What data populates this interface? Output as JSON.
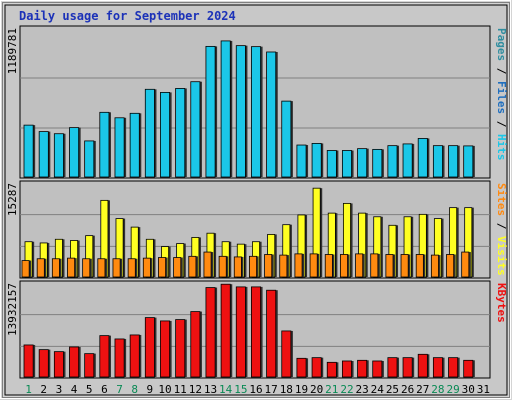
{
  "chart_data": {
    "type": "bar",
    "title": "Daily usage for September 2024",
    "categories": [
      "1",
      "2",
      "3",
      "4",
      "5",
      "6",
      "7",
      "8",
      "9",
      "10",
      "11",
      "12",
      "13",
      "14",
      "15",
      "16",
      "17",
      "18",
      "19",
      "20",
      "21",
      "22",
      "23",
      "24",
      "25",
      "26",
      "27",
      "28",
      "29",
      "30",
      "31"
    ],
    "weekend_days": [
      "1",
      "7",
      "8",
      "14",
      "15",
      "21",
      "22",
      "28",
      "29"
    ],
    "colors": {
      "pages": "#2f8ea0",
      "files": "#1f6fbf",
      "hits": "#1bc7e8",
      "sites": "#ff8a10",
      "visits": "#ffff22",
      "kbytes": "#ee1111",
      "title": "#1c32b8",
      "weekend_label": "#0a8a55",
      "weekday_label": "#000000",
      "panel_bg": "#c0c0c0"
    },
    "panels": [
      {
        "key": "hits",
        "ymax_label": "1189781",
        "ylim": [
          0,
          1189781
        ],
        "right_label_parts": [
          {
            "text": "Pages",
            "color": "#2f8ea0"
          },
          {
            "text": " / ",
            "color": "#000000"
          },
          {
            "text": "Files",
            "color": "#1f6fbf"
          },
          {
            "text": " / ",
            "color": "#000000"
          },
          {
            "text": "Hits",
            "color": "#1bc7e8"
          }
        ],
        "series": [
          {
            "key": "hits",
            "color": "#1bc7e8",
            "values": [
              417000,
              365000,
              348000,
              397000,
              290000,
              520000,
              476000,
              512000,
              705000,
              680000,
              712000,
              766000,
              1050000,
              1094000,
              1056000,
              1048000,
              1005000,
              610000,
              257000,
              270000,
              213000,
              213000,
              228000,
              222000,
              252000,
              266000,
              310000,
              252000,
              252000,
              250000,
              null
            ]
          }
        ]
      },
      {
        "key": "visits",
        "ymax_label": "15287",
        "ylim": [
          0,
          15287
        ],
        "right_label_parts": [
          {
            "text": "Sites",
            "color": "#ff8a10"
          },
          {
            "text": " / ",
            "color": "#000000"
          },
          {
            "text": "Visits",
            "color": "#ffff22"
          }
        ],
        "series": [
          {
            "key": "visits",
            "color": "#ffff22",
            "values": [
              5800,
              5600,
              6200,
              6000,
              6800,
              12600,
              9600,
              8200,
              6200,
              5000,
              5500,
              6500,
              7200,
              5800,
              5400,
              5800,
              7000,
              8600,
              10200,
              14600,
              10500,
              12100,
              10500,
              9900,
              8500,
              9900,
              10300,
              9600,
              11400,
              11400,
              null
            ]
          },
          {
            "key": "sites",
            "color": "#ff8a10",
            "values": [
              2700,
              3000,
              3000,
              3100,
              3000,
              3000,
              3000,
              3000,
              3100,
              3200,
              3200,
              3400,
              4100,
              3400,
              3300,
              3400,
              3700,
              3600,
              3800,
              3800,
              3700,
              3700,
              3800,
              3800,
              3700,
              3700,
              3700,
              3600,
              3700,
              4100,
              null
            ]
          }
        ]
      },
      {
        "key": "kbytes",
        "ymax_label": "13932157",
        "ylim": [
          0,
          13932157
        ],
        "right_label_parts": [
          {
            "text": "KBytes",
            "color": "#ee1111"
          }
        ],
        "series": [
          {
            "key": "kbytes",
            "color": "#ee1111",
            "values": [
              4800000,
              4100000,
              3800000,
              4500000,
              3500000,
              6200000,
              5700000,
              6300000,
              8900000,
              8400000,
              8600000,
              9800000,
              13400000,
              13900000,
              13500000,
              13500000,
              13000000,
              6900000,
              2800000,
              2900000,
              2200000,
              2400000,
              2500000,
              2400000,
              2900000,
              2900000,
              3400000,
              2900000,
              2900000,
              2500000,
              null
            ]
          }
        ]
      }
    ],
    "x_tick_labels": [
      "1",
      "2",
      "3",
      "4",
      "5",
      "6",
      "7",
      "8",
      "9",
      "10",
      "11",
      "12",
      "13",
      "14",
      "15",
      "16",
      "17",
      "18",
      "19",
      "20",
      "21",
      "22",
      "23",
      "24",
      "25",
      "26",
      "27",
      "28",
      "29",
      "30",
      "31"
    ]
  }
}
